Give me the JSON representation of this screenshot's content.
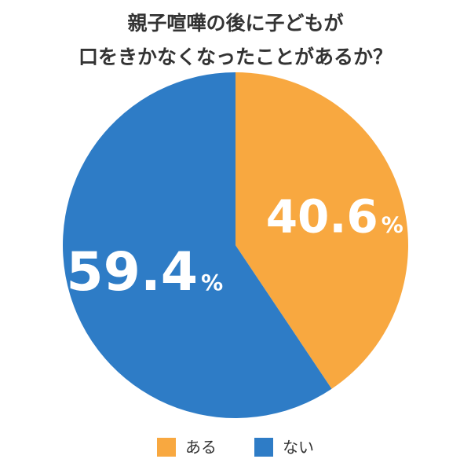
{
  "chart_data": {
    "type": "pie",
    "title_lines": [
      "親子喧嘩の後に子どもが",
      "口をきかなくなったことがあるか？"
    ],
    "slices": [
      {
        "label": "ある",
        "value": 40.6,
        "value_text": "40.6",
        "unit_text": "%",
        "color": "#F8A840"
      },
      {
        "label": "ない",
        "value": 59.4,
        "value_text": "59.4",
        "unit_text": "%",
        "color": "#2E7CC6"
      }
    ],
    "start": "12 o'clock",
    "direction": "clockwise",
    "legend_position": "bottom-center"
  }
}
